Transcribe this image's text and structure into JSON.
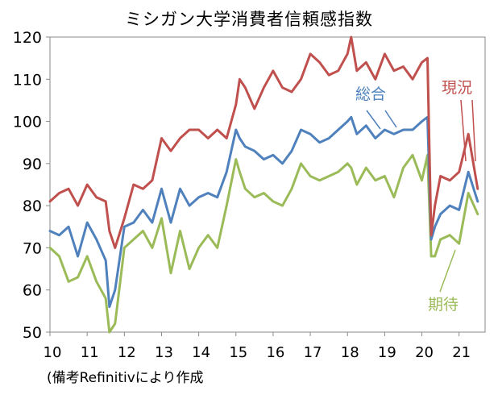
{
  "chart_data": {
    "type": "line",
    "title": "ミシガン大学消費者信頼感指数",
    "source": "(備考Refinitivにより作成",
    "xlabel": "",
    "ylabel": "",
    "ylim": [
      50,
      120
    ],
    "yticks": [
      50,
      60,
      70,
      80,
      90,
      100,
      110,
      120
    ],
    "xlim": [
      2010,
      2021.7
    ],
    "xticks": [
      2010,
      2011,
      2012,
      2013,
      2014,
      2015,
      2016,
      2017,
      2018,
      2019,
      2020,
      2021
    ],
    "xtick_labels": [
      "10",
      "11",
      "12",
      "13",
      "14",
      "15",
      "16",
      "17",
      "18",
      "19",
      "20",
      "21"
    ],
    "grid": false,
    "legend": "inline labels",
    "series": [
      {
        "name": "現況",
        "color": "#c0504d",
        "x": [
          2010.0,
          2010.25,
          2010.5,
          2010.75,
          2011.0,
          2011.25,
          2011.5,
          2011.6,
          2011.75,
          2012.0,
          2012.25,
          2012.5,
          2012.75,
          2013.0,
          2013.25,
          2013.5,
          2013.75,
          2014.0,
          2014.25,
          2014.5,
          2014.75,
          2015.0,
          2015.1,
          2015.25,
          2015.5,
          2015.75,
          2016.0,
          2016.25,
          2016.5,
          2016.75,
          2017.0,
          2017.25,
          2017.5,
          2017.75,
          2018.0,
          2018.1,
          2018.25,
          2018.5,
          2018.75,
          2019.0,
          2019.25,
          2019.5,
          2019.75,
          2020.0,
          2020.15,
          2020.25,
          2020.35,
          2020.5,
          2020.75,
          2021.0,
          2021.25,
          2021.5
        ],
        "values": [
          81,
          83,
          84,
          80,
          85,
          82,
          81,
          74,
          70,
          77,
          85,
          84,
          86,
          96,
          93,
          96,
          98,
          98,
          96,
          98,
          96,
          104,
          110,
          108,
          103,
          108,
          112,
          108,
          107,
          110,
          116,
          114,
          111,
          112,
          116,
          120,
          112,
          114,
          110,
          116,
          112,
          113,
          110,
          114,
          115,
          73,
          80,
          87,
          86,
          88,
          97,
          84
        ]
      },
      {
        "name": "総合",
        "color": "#4f81bd",
        "x": [
          2010.0,
          2010.25,
          2010.5,
          2010.75,
          2011.0,
          2011.25,
          2011.5,
          2011.6,
          2011.75,
          2012.0,
          2012.25,
          2012.5,
          2012.75,
          2013.0,
          2013.25,
          2013.5,
          2013.75,
          2014.0,
          2014.25,
          2014.5,
          2014.75,
          2015.0,
          2015.1,
          2015.25,
          2015.5,
          2015.75,
          2016.0,
          2016.25,
          2016.5,
          2016.75,
          2017.0,
          2017.25,
          2017.5,
          2017.75,
          2018.0,
          2018.1,
          2018.25,
          2018.5,
          2018.75,
          2019.0,
          2019.25,
          2019.5,
          2019.75,
          2020.0,
          2020.15,
          2020.25,
          2020.35,
          2020.5,
          2020.75,
          2021.0,
          2021.25,
          2021.5
        ],
        "values": [
          74,
          73,
          75,
          68,
          76,
          72,
          67,
          56,
          60,
          75,
          76,
          79,
          76,
          84,
          76,
          84,
          80,
          82,
          83,
          82,
          88,
          98,
          96,
          94,
          93,
          91,
          92,
          90,
          93,
          98,
          97,
          95,
          96,
          98,
          100,
          101,
          97,
          99,
          96,
          98,
          97,
          98,
          98,
          100,
          101,
          72,
          75,
          78,
          80,
          79,
          88,
          81
        ]
      },
      {
        "name": "期待",
        "color": "#9bbb59",
        "x": [
          2010.0,
          2010.25,
          2010.5,
          2010.75,
          2011.0,
          2011.25,
          2011.5,
          2011.6,
          2011.75,
          2012.0,
          2012.25,
          2012.5,
          2012.75,
          2013.0,
          2013.25,
          2013.5,
          2013.75,
          2014.0,
          2014.25,
          2014.5,
          2014.75,
          2015.0,
          2015.1,
          2015.25,
          2015.5,
          2015.75,
          2016.0,
          2016.25,
          2016.5,
          2016.75,
          2017.0,
          2017.25,
          2017.5,
          2017.75,
          2018.0,
          2018.1,
          2018.25,
          2018.5,
          2018.75,
          2019.0,
          2019.25,
          2019.5,
          2019.75,
          2020.0,
          2020.15,
          2020.25,
          2020.35,
          2020.5,
          2020.75,
          2021.0,
          2021.25,
          2021.5
        ],
        "values": [
          70,
          68,
          62,
          63,
          68,
          62,
          58,
          50,
          52,
          70,
          72,
          74,
          70,
          77,
          64,
          74,
          65,
          70,
          73,
          70,
          80,
          91,
          88,
          84,
          82,
          83,
          81,
          80,
          84,
          90,
          87,
          86,
          87,
          88,
          90,
          89,
          85,
          89,
          86,
          87,
          82,
          89,
          92,
          86,
          92,
          68,
          68,
          72,
          73,
          71,
          83,
          78
        ]
      }
    ],
    "annotations": [
      {
        "series": "現況",
        "text": "現況"
      },
      {
        "series": "総合",
        "text": "総合"
      },
      {
        "series": "期待",
        "text": "期待"
      }
    ]
  }
}
